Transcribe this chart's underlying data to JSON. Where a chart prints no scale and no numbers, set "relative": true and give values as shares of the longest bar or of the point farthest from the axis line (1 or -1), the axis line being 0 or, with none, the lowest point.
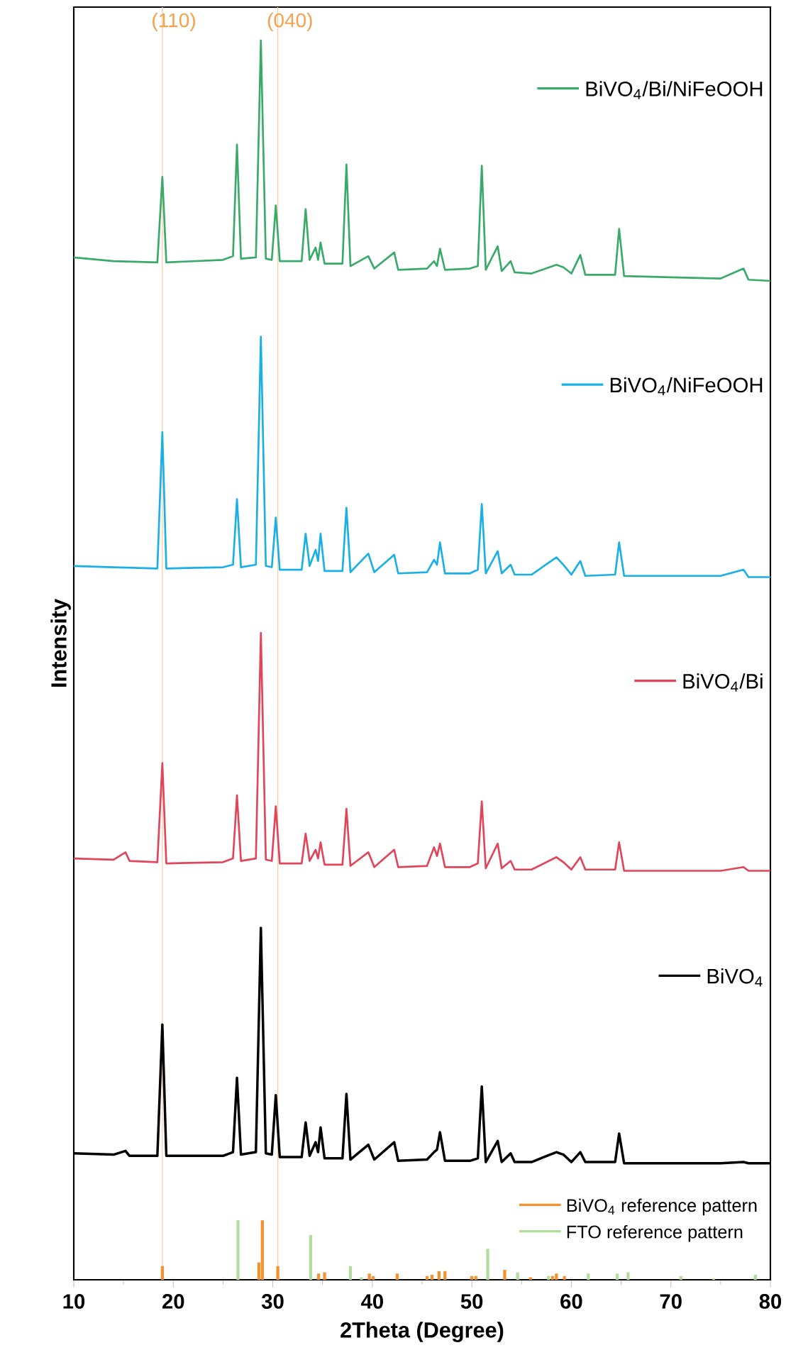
{
  "chart_data": {
    "type": "line",
    "xlabel": "2Theta (Degree)",
    "ylabel": "Intensity",
    "relative": true,
    "xlim": [
      10,
      80
    ],
    "xticks": [
      10,
      20,
      30,
      40,
      50,
      60,
      70,
      80
    ],
    "legend": "bottom right",
    "ref_lines": [
      {
        "axis": "x",
        "value": 18.9,
        "color": "#f9cfa6"
      },
      {
        "axis": "x",
        "value": 30.5,
        "color": "#f9cfa6"
      }
    ],
    "annotations": [
      {
        "text": "(110)",
        "x": 18.9,
        "y": 1.015
      },
      {
        "text": "(040)",
        "x": 30.5,
        "y": 1.015
      }
    ],
    "series": [
      {
        "name": "BiVO$_{4}$/Bi/NiFeOOH",
        "type": "line",
        "color": "#3aaa6a",
        "x": [
          10,
          14,
          18.4,
          18.9,
          19.3,
          25,
          26.0,
          26.4,
          26.8,
          28.3,
          28.8,
          29.3,
          29.9,
          30.3,
          30.7,
          32.9,
          33.3,
          33.7,
          34.3,
          34.55,
          34.8,
          35.2,
          37.0,
          37.4,
          37.8,
          39.6,
          40.2,
          42.2,
          42.6,
          45.5,
          46.2,
          46.5,
          46.8,
          47.3,
          49.8,
          50.6,
          51.0,
          51.4,
          52.6,
          53.0,
          53.9,
          54.3,
          56,
          58.5,
          59.2,
          60.0,
          60.9,
          61.4,
          64.4,
          64.8,
          65.3,
          70,
          75,
          77.3,
          77.8,
          80
        ],
        "values": [
          0.825,
          0.822,
          0.821,
          0.89,
          0.821,
          0.823,
          0.826,
          0.916,
          0.824,
          0.825,
          1.0,
          0.824,
          0.823,
          0.867,
          0.822,
          0.822,
          0.864,
          0.823,
          0.833,
          0.823,
          0.837,
          0.82,
          0.82,
          0.9,
          0.818,
          0.826,
          0.816,
          0.829,
          0.815,
          0.816,
          0.822,
          0.818,
          0.832,
          0.815,
          0.816,
          0.818,
          0.899,
          0.815,
          0.834,
          0.814,
          0.822,
          0.813,
          0.812,
          0.819,
          0.817,
          0.812,
          0.827,
          0.811,
          0.811,
          0.848,
          0.81,
          0.809,
          0.808,
          0.816,
          0.807,
          0.806
        ]
      },
      {
        "name": "BiVO$_{4}$/NiFeOOH",
        "type": "line",
        "color": "#1ab0e6",
        "x": [
          10,
          14,
          18.4,
          18.9,
          19.3,
          25,
          26.0,
          26.4,
          26.8,
          28.3,
          28.8,
          29.3,
          29.9,
          30.3,
          30.7,
          32.9,
          33.3,
          33.7,
          34.3,
          34.55,
          34.8,
          35.2,
          37.0,
          37.4,
          37.8,
          39.6,
          40.2,
          42.2,
          42.6,
          45.5,
          46.2,
          46.5,
          46.8,
          47.3,
          49.8,
          50.6,
          51.0,
          51.4,
          52.6,
          53.0,
          53.9,
          54.3,
          56,
          58.5,
          59.2,
          60.0,
          60.9,
          61.4,
          64.4,
          64.8,
          65.3,
          70,
          75,
          77.3,
          77.8,
          80
        ],
        "values": [
          0.576,
          0.575,
          0.574,
          0.684,
          0.574,
          0.575,
          0.577,
          0.63,
          0.575,
          0.577,
          0.761,
          0.576,
          0.575,
          0.615,
          0.573,
          0.573,
          0.602,
          0.576,
          0.589,
          0.58,
          0.602,
          0.572,
          0.572,
          0.623,
          0.571,
          0.586,
          0.571,
          0.585,
          0.57,
          0.571,
          0.581,
          0.577,
          0.595,
          0.57,
          0.57,
          0.573,
          0.626,
          0.57,
          0.588,
          0.57,
          0.577,
          0.569,
          0.569,
          0.583,
          0.577,
          0.569,
          0.58,
          0.568,
          0.569,
          0.595,
          0.568,
          0.568,
          0.568,
          0.573,
          0.567,
          0.567
        ]
      },
      {
        "name": "BiVO$_{4}$/Bi",
        "type": "line",
        "color": "#e0455a",
        "x": [
          10,
          14,
          15.2,
          15.6,
          18.4,
          18.9,
          19.3,
          25,
          26.0,
          26.4,
          26.8,
          28.3,
          28.8,
          29.3,
          29.9,
          30.3,
          30.7,
          32.9,
          33.3,
          33.7,
          34.3,
          34.55,
          34.8,
          35.2,
          37.0,
          37.4,
          37.8,
          39.6,
          40.2,
          42.2,
          42.6,
          45.5,
          46.2,
          46.5,
          46.8,
          47.3,
          49.8,
          50.6,
          51.0,
          51.4,
          52.6,
          53.0,
          53.9,
          54.3,
          56,
          58.5,
          59.2,
          60.0,
          60.9,
          61.4,
          64.4,
          64.8,
          65.3,
          70,
          75,
          77.3,
          77.8,
          80
        ],
        "values": [
          0.34,
          0.339,
          0.345,
          0.338,
          0.337,
          0.417,
          0.336,
          0.337,
          0.34,
          0.391,
          0.338,
          0.34,
          0.522,
          0.339,
          0.338,
          0.382,
          0.336,
          0.336,
          0.36,
          0.338,
          0.347,
          0.34,
          0.353,
          0.335,
          0.335,
          0.38,
          0.334,
          0.345,
          0.333,
          0.347,
          0.333,
          0.334,
          0.349,
          0.342,
          0.352,
          0.333,
          0.333,
          0.336,
          0.386,
          0.332,
          0.352,
          0.332,
          0.338,
          0.331,
          0.331,
          0.341,
          0.337,
          0.331,
          0.341,
          0.331,
          0.331,
          0.353,
          0.33,
          0.33,
          0.33,
          0.333,
          0.33,
          0.33
        ]
      },
      {
        "name": "BiVO$_{4}$",
        "type": "line",
        "color": "#000000",
        "x": [
          10,
          14,
          15.2,
          15.6,
          18.4,
          18.9,
          19.3,
          25,
          26.0,
          26.4,
          26.8,
          28.3,
          28.8,
          29.3,
          29.9,
          30.3,
          30.7,
          32.9,
          33.3,
          33.7,
          34.3,
          34.55,
          34.8,
          35.2,
          37.0,
          37.4,
          37.8,
          39.6,
          40.2,
          42.2,
          42.6,
          45.5,
          46.2,
          46.5,
          46.8,
          47.3,
          49.8,
          50.6,
          51.0,
          51.4,
          52.6,
          53.0,
          53.9,
          54.3,
          56,
          58.5,
          59.2,
          60.0,
          60.9,
          61.4,
          64.4,
          64.8,
          65.3,
          70,
          75,
          77.3,
          77.8,
          80
        ],
        "values": [
          0.102,
          0.101,
          0.104,
          0.1,
          0.1,
          0.206,
          0.1,
          0.1,
          0.103,
          0.163,
          0.101,
          0.103,
          0.284,
          0.102,
          0.101,
          0.149,
          0.099,
          0.099,
          0.127,
          0.1,
          0.111,
          0.103,
          0.123,
          0.098,
          0.098,
          0.15,
          0.097,
          0.109,
          0.097,
          0.111,
          0.096,
          0.097,
          0.103,
          0.105,
          0.119,
          0.096,
          0.096,
          0.098,
          0.156,
          0.095,
          0.112,
          0.095,
          0.102,
          0.095,
          0.095,
          0.103,
          0.101,
          0.095,
          0.103,
          0.095,
          0.095,
          0.118,
          0.094,
          0.094,
          0.094,
          0.095,
          0.094,
          0.094
        ]
      },
      {
        "name": "BiVO$_{4}$ reference pattern",
        "type": "bar",
        "color": "#f5922f",
        "x": [
          18.9,
          28.6,
          28.95,
          30.5,
          34.6,
          35.2,
          39.7,
          40.1,
          42.5,
          45.5,
          46.0,
          46.7,
          47.3,
          50.0,
          50.4,
          53.3,
          55.9,
          58.1,
          58.5,
          59.3
        ],
        "values": [
          0.011,
          0.014,
          0.048,
          0.011,
          0.005,
          0.006,
          0.005,
          0.003,
          0.005,
          0.003,
          0.004,
          0.007,
          0.007,
          0.003,
          0.003,
          0.008,
          0.002,
          0.003,
          0.005,
          0.003
        ]
      },
      {
        "name": "FTO reference pattern",
        "type": "bar",
        "color": "#b5dc9f",
        "x": [
          26.5,
          33.8,
          37.8,
          38.9,
          51.6,
          54.6,
          57.7,
          61.7,
          64.6,
          65.7,
          71.0,
          74.3,
          78.5
        ],
        "values": [
          0.048,
          0.036,
          0.011,
          0.002,
          0.025,
          0.006,
          0.003,
          0.005,
          0.005,
          0.006,
          0.003,
          0.001,
          0.004
        ]
      }
    ]
  }
}
